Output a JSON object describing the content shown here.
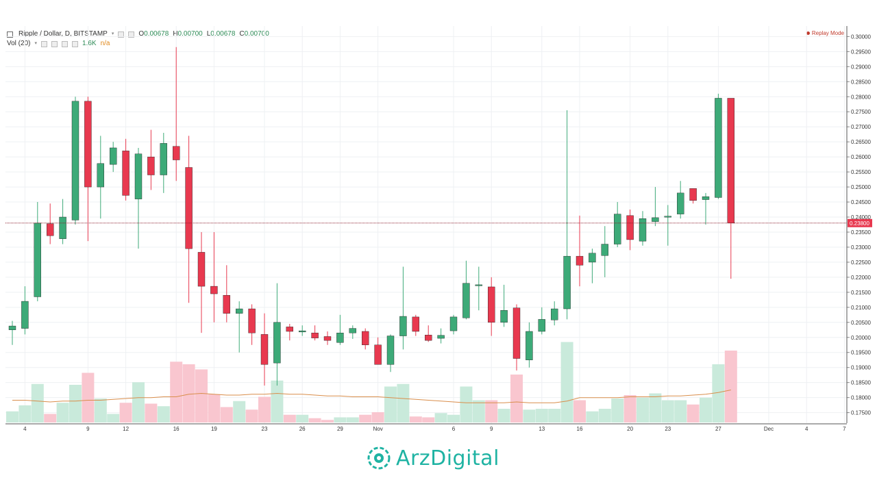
{
  "legend": {
    "symbol": "Ripple / Dollar, D, BITSTAMP",
    "open_key": "O",
    "open": "0.00678",
    "high_key": "H",
    "high": "0.00700",
    "low_key": "L",
    "low": "0.00678",
    "close_key": "C",
    "close": "0.00700",
    "vol_label": "Vol (20)",
    "vol_value": "1.6K",
    "vol_ma": "n/a"
  },
  "replay_mode": "Replay Mode",
  "watermark": "ArzDigital",
  "colors": {
    "up": "#3daa78",
    "down": "#e8394f",
    "vol_up": "#c9eadb",
    "vol_down": "#f9c6cf",
    "ma": "#d98d4a",
    "price_line": "#8b1a2a",
    "price_tag": "#e8394f"
  },
  "chart_data": {
    "type": "candlestick",
    "y_range": [
      0.1715,
      0.3035
    ],
    "y_ticks": [
      "0.30000",
      "0.29500",
      "0.29000",
      "0.28500",
      "0.28000",
      "0.27500",
      "0.27000",
      "0.26500",
      "0.26000",
      "0.25500",
      "0.25000",
      "0.24500",
      "0.24000",
      "0.23500",
      "0.23000",
      "0.22500",
      "0.22000",
      "0.21500",
      "0.21000",
      "0.20500",
      "0.20000",
      "0.19500",
      "0.19000",
      "0.18500",
      "0.18000",
      "0.17500"
    ],
    "x_tick_labels": [
      {
        "index": 1,
        "label": "4"
      },
      {
        "index": 6,
        "label": "9"
      },
      {
        "index": 9,
        "label": "12"
      },
      {
        "index": 13,
        "label": "16"
      },
      {
        "index": 16,
        "label": "19"
      },
      {
        "index": 20,
        "label": "23"
      },
      {
        "index": 23,
        "label": "26"
      },
      {
        "index": 26,
        "label": "29"
      },
      {
        "index": 29,
        "label": "Nov"
      },
      {
        "index": 35,
        "label": "6"
      },
      {
        "index": 38,
        "label": "9"
      },
      {
        "index": 42,
        "label": "13"
      },
      {
        "index": 45,
        "label": "16"
      },
      {
        "index": 49,
        "label": "20"
      },
      {
        "index": 52,
        "label": "23"
      },
      {
        "index": 56,
        "label": "27"
      },
      {
        "index": 60,
        "label": "Dec"
      },
      {
        "index": 63,
        "label": "4"
      },
      {
        "index": 66,
        "label": "7"
      }
    ],
    "current_price": "0.23800",
    "current_price_value": 0.238,
    "candles": [
      {
        "o": 0.2025,
        "h": 0.2055,
        "l": 0.1975,
        "c": 0.2038
      },
      {
        "o": 0.203,
        "h": 0.217,
        "l": 0.201,
        "c": 0.212
      },
      {
        "o": 0.2135,
        "h": 0.245,
        "l": 0.212,
        "c": 0.238
      },
      {
        "o": 0.2378,
        "h": 0.2445,
        "l": 0.231,
        "c": 0.2338
      },
      {
        "o": 0.2328,
        "h": 0.246,
        "l": 0.231,
        "c": 0.24
      },
      {
        "o": 0.239,
        "h": 0.28,
        "l": 0.2375,
        "c": 0.2785
      },
      {
        "o": 0.2785,
        "h": 0.28,
        "l": 0.232,
        "c": 0.25
      },
      {
        "o": 0.25,
        "h": 0.267,
        "l": 0.2395,
        "c": 0.2578
      },
      {
        "o": 0.2575,
        "h": 0.265,
        "l": 0.255,
        "c": 0.263
      },
      {
        "o": 0.262,
        "h": 0.266,
        "l": 0.2455,
        "c": 0.2472
      },
      {
        "o": 0.246,
        "h": 0.263,
        "l": 0.2295,
        "c": 0.261
      },
      {
        "o": 0.26,
        "h": 0.269,
        "l": 0.249,
        "c": 0.254
      },
      {
        "o": 0.254,
        "h": 0.268,
        "l": 0.248,
        "c": 0.2645
      },
      {
        "o": 0.2635,
        "h": 0.2965,
        "l": 0.252,
        "c": 0.259
      },
      {
        "o": 0.2565,
        "h": 0.267,
        "l": 0.2115,
        "c": 0.2295
      },
      {
        "o": 0.2283,
        "h": 0.235,
        "l": 0.2015,
        "c": 0.217
      },
      {
        "o": 0.217,
        "h": 0.235,
        "l": 0.205,
        "c": 0.2145
      },
      {
        "o": 0.214,
        "h": 0.224,
        "l": 0.205,
        "c": 0.208
      },
      {
        "o": 0.208,
        "h": 0.212,
        "l": 0.195,
        "c": 0.2095
      },
      {
        "o": 0.2095,
        "h": 0.211,
        "l": 0.1975,
        "c": 0.2015
      },
      {
        "o": 0.201,
        "h": 0.208,
        "l": 0.184,
        "c": 0.191
      },
      {
        "o": 0.1915,
        "h": 0.218,
        "l": 0.184,
        "c": 0.205
      },
      {
        "o": 0.2035,
        "h": 0.2045,
        "l": 0.199,
        "c": 0.202
      },
      {
        "o": 0.2018,
        "h": 0.204,
        "l": 0.2005,
        "c": 0.2022
      },
      {
        "o": 0.2015,
        "h": 0.204,
        "l": 0.199,
        "c": 0.1998
      },
      {
        "o": 0.2003,
        "h": 0.202,
        "l": 0.1975,
        "c": 0.199
      },
      {
        "o": 0.1983,
        "h": 0.2075,
        "l": 0.1975,
        "c": 0.2015
      },
      {
        "o": 0.2015,
        "h": 0.204,
        "l": 0.1995,
        "c": 0.203
      },
      {
        "o": 0.202,
        "h": 0.203,
        "l": 0.196,
        "c": 0.1975
      },
      {
        "o": 0.1975,
        "h": 0.2,
        "l": 0.191,
        "c": 0.191
      },
      {
        "o": 0.191,
        "h": 0.201,
        "l": 0.1885,
        "c": 0.2005
      },
      {
        "o": 0.2005,
        "h": 0.2235,
        "l": 0.196,
        "c": 0.207
      },
      {
        "o": 0.2068,
        "h": 0.2075,
        "l": 0.2005,
        "c": 0.202
      },
      {
        "o": 0.2008,
        "h": 0.204,
        "l": 0.1985,
        "c": 0.199
      },
      {
        "o": 0.1997,
        "h": 0.203,
        "l": 0.198,
        "c": 0.2007
      },
      {
        "o": 0.2022,
        "h": 0.2075,
        "l": 0.201,
        "c": 0.2068
      },
      {
        "o": 0.2065,
        "h": 0.2255,
        "l": 0.206,
        "c": 0.218
      },
      {
        "o": 0.2173,
        "h": 0.2235,
        "l": 0.209,
        "c": 0.2175
      },
      {
        "o": 0.2168,
        "h": 0.22,
        "l": 0.2005,
        "c": 0.205
      },
      {
        "o": 0.205,
        "h": 0.2175,
        "l": 0.2035,
        "c": 0.209
      },
      {
        "o": 0.2098,
        "h": 0.211,
        "l": 0.189,
        "c": 0.193
      },
      {
        "o": 0.1925,
        "h": 0.205,
        "l": 0.19,
        "c": 0.202
      },
      {
        "o": 0.202,
        "h": 0.21,
        "l": 0.201,
        "c": 0.206
      },
      {
        "o": 0.2058,
        "h": 0.212,
        "l": 0.204,
        "c": 0.2095
      },
      {
        "o": 0.2095,
        "h": 0.2755,
        "l": 0.206,
        "c": 0.227
      },
      {
        "o": 0.227,
        "h": 0.2405,
        "l": 0.217,
        "c": 0.224
      },
      {
        "o": 0.225,
        "h": 0.2295,
        "l": 0.218,
        "c": 0.228
      },
      {
        "o": 0.2272,
        "h": 0.237,
        "l": 0.22,
        "c": 0.231
      },
      {
        "o": 0.231,
        "h": 0.245,
        "l": 0.23,
        "c": 0.241
      },
      {
        "o": 0.2405,
        "h": 0.2425,
        "l": 0.229,
        "c": 0.2325
      },
      {
        "o": 0.232,
        "h": 0.242,
        "l": 0.2305,
        "c": 0.2395
      },
      {
        "o": 0.2385,
        "h": 0.25,
        "l": 0.237,
        "c": 0.2398
      },
      {
        "o": 0.2403,
        "h": 0.244,
        "l": 0.2305,
        "c": 0.2403
      },
      {
        "o": 0.241,
        "h": 0.252,
        "l": 0.2395,
        "c": 0.248
      },
      {
        "o": 0.2495,
        "h": 0.2495,
        "l": 0.2445,
        "c": 0.2455
      },
      {
        "o": 0.2458,
        "h": 0.248,
        "l": 0.2375,
        "c": 0.2468
      },
      {
        "o": 0.2465,
        "h": 0.281,
        "l": 0.246,
        "c": 0.2795
      },
      {
        "o": 0.2795,
        "h": 0.2795,
        "l": 0.2195,
        "c": 0.238
      }
    ],
    "volume_scale_max": 12,
    "volumes": [
      1.3,
      2.0,
      4.5,
      1.0,
      2.3,
      4.4,
      5.8,
      2.8,
      1.0,
      2.3,
      4.7,
      2.2,
      1.9,
      7.1,
      6.8,
      6.2,
      3.3,
      1.8,
      2.5,
      1.5,
      3.0,
      4.9,
      0.9,
      0.9,
      0.5,
      0.3,
      0.6,
      0.6,
      0.9,
      1.2,
      4.2,
      4.5,
      0.7,
      0.6,
      1.1,
      0.9,
      4.2,
      2.6,
      2.6,
      1.6,
      5.6,
      1.5,
      1.6,
      1.6,
      9.4,
      2.6,
      1.3,
      1.6,
      2.8,
      3.2,
      2.9,
      3.4,
      2.6,
      2.6,
      2.1,
      2.9,
      6.8,
      8.4
    ],
    "volume_ma": [
      2.6,
      2.6,
      2.5,
      2.4,
      2.5,
      2.5,
      2.6,
      2.6,
      2.7,
      2.8,
      2.9,
      2.9,
      3.0,
      3.0,
      3.3,
      3.4,
      3.3,
      3.2,
      3.2,
      3.3,
      3.3,
      3.4,
      3.3,
      3.3,
      3.2,
      3.1,
      3.1,
      3.0,
      3.0,
      3.0,
      2.9,
      2.8,
      2.7,
      2.6,
      2.5,
      2.4,
      2.3,
      2.3,
      2.3,
      2.3,
      2.4,
      2.3,
      2.3,
      2.3,
      2.5,
      2.9,
      2.9,
      2.9,
      2.9,
      3.0,
      3.0,
      3.0,
      3.1,
      3.1,
      3.2,
      3.3,
      3.5,
      3.8
    ]
  }
}
